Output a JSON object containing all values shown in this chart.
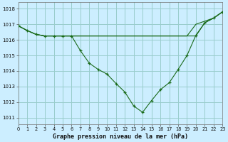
{
  "title": "Graphe pression niveau de la mer (hPa)",
  "background_color": "#cceeff",
  "grid_color": "#99cccc",
  "line_color": "#1a6b1a",
  "marker_color": "#1a6b1a",
  "xlim": [
    0,
    23
  ],
  "ylim": [
    1010.6,
    1018.4
  ],
  "yticks": [
    1011,
    1012,
    1013,
    1014,
    1015,
    1016,
    1017,
    1018
  ],
  "xticks": [
    0,
    1,
    2,
    3,
    4,
    5,
    6,
    7,
    8,
    9,
    10,
    11,
    12,
    13,
    14,
    15,
    16,
    17,
    18,
    19,
    20,
    21,
    22,
    23
  ],
  "series_main": {
    "x": [
      0,
      1,
      2,
      3,
      4,
      5,
      6,
      7,
      8,
      9,
      10,
      11,
      12,
      13,
      14,
      15,
      16,
      17,
      18,
      19,
      20,
      21,
      22,
      23
    ],
    "y": [
      1016.9,
      1016.6,
      1016.35,
      1016.25,
      1016.25,
      1016.25,
      1016.25,
      1015.3,
      1014.5,
      1014.1,
      1013.8,
      1013.2,
      1012.65,
      1011.75,
      1011.35,
      1012.1,
      1012.8,
      1013.25,
      1014.1,
      1015.0,
      1016.3,
      1017.1,
      1017.4,
      1017.8
    ]
  },
  "series_upper1": {
    "x": [
      0,
      1,
      2,
      3,
      4,
      5,
      6,
      14,
      19,
      20,
      21,
      22,
      23
    ],
    "y": [
      1016.9,
      1016.6,
      1016.35,
      1016.25,
      1016.25,
      1016.25,
      1016.25,
      1016.25,
      1016.25,
      1016.25,
      1017.1,
      1017.4,
      1017.8
    ]
  },
  "series_upper2": {
    "x": [
      0,
      1,
      2,
      3,
      4,
      5,
      6,
      14,
      19,
      20,
      21,
      22,
      23
    ],
    "y": [
      1016.9,
      1016.6,
      1016.35,
      1016.25,
      1016.25,
      1016.25,
      1016.25,
      1016.25,
      1016.25,
      1017.0,
      1017.2,
      1017.4,
      1017.8
    ]
  }
}
